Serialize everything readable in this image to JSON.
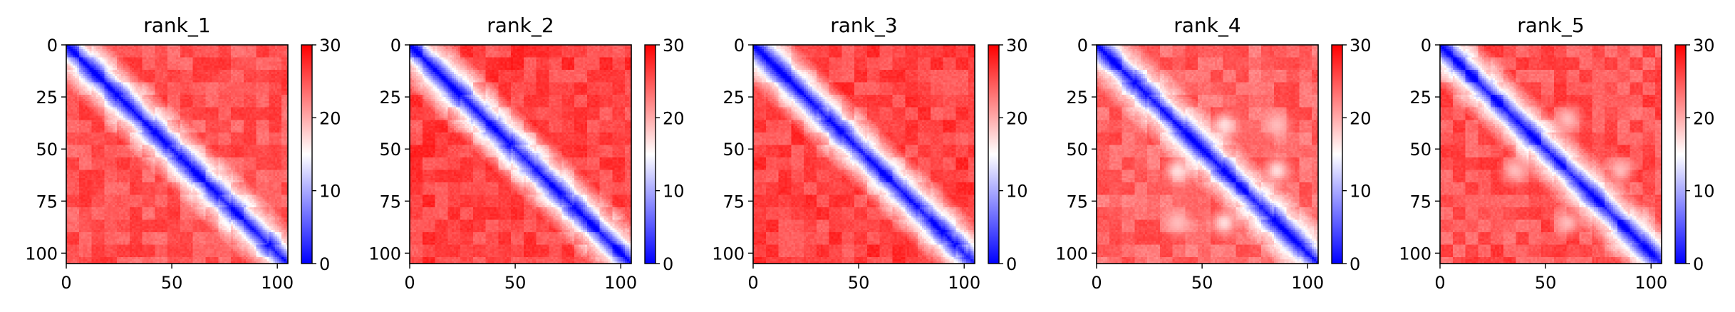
{
  "chart_data": [
    {
      "type": "heatmap",
      "title": "rank_1",
      "xlim": [
        0,
        105
      ],
      "ylim": [
        105,
        0
      ],
      "x_ticks": [
        0,
        50,
        100
      ],
      "y_ticks": [
        0,
        25,
        50,
        75,
        100
      ],
      "colorbar": {
        "min": 0,
        "max": 30,
        "ticks": [
          0,
          10,
          20,
          30
        ],
        "colormap": "bwr"
      },
      "diagonal_band_width": 9,
      "background_level": 25,
      "features": []
    },
    {
      "type": "heatmap",
      "title": "rank_2",
      "xlim": [
        0,
        105
      ],
      "ylim": [
        105,
        0
      ],
      "x_ticks": [
        0,
        50,
        100
      ],
      "y_ticks": [
        0,
        25,
        50,
        75,
        100
      ],
      "colorbar": {
        "min": 0,
        "max": 30,
        "ticks": [
          0,
          10,
          20,
          30
        ],
        "colormap": "bwr"
      },
      "diagonal_band_width": 9,
      "background_level": 26,
      "features": []
    },
    {
      "type": "heatmap",
      "title": "rank_3",
      "xlim": [
        0,
        105
      ],
      "ylim": [
        105,
        0
      ],
      "x_ticks": [
        0,
        50,
        100
      ],
      "y_ticks": [
        0,
        25,
        50,
        75,
        100
      ],
      "colorbar": {
        "min": 0,
        "max": 30,
        "ticks": [
          0,
          10,
          20,
          30
        ],
        "colormap": "bwr"
      },
      "diagonal_band_width": 9,
      "background_level": 26,
      "features": []
    },
    {
      "type": "heatmap",
      "title": "rank_4",
      "xlim": [
        0,
        105
      ],
      "ylim": [
        105,
        0
      ],
      "x_ticks": [
        0,
        50,
        100
      ],
      "y_ticks": [
        0,
        25,
        50,
        75,
        100
      ],
      "colorbar": {
        "min": 0,
        "max": 30,
        "ticks": [
          0,
          10,
          20,
          30
        ],
        "colormap": "bwr"
      },
      "diagonal_band_width": 9,
      "background_level": 24,
      "features": [
        {
          "x": 60,
          "y": 38,
          "value": 17
        },
        {
          "x": 38,
          "y": 60,
          "value": 17
        },
        {
          "x": 85,
          "y": 60,
          "value": 17
        },
        {
          "x": 60,
          "y": 85,
          "value": 17
        },
        {
          "x": 85,
          "y": 38,
          "value": 19
        },
        {
          "x": 38,
          "y": 85,
          "value": 19
        }
      ]
    },
    {
      "type": "heatmap",
      "title": "rank_5",
      "xlim": [
        0,
        105
      ],
      "ylim": [
        105,
        0
      ],
      "x_ticks": [
        0,
        50,
        100
      ],
      "y_ticks": [
        0,
        25,
        50,
        75,
        100
      ],
      "colorbar": {
        "min": 0,
        "max": 30,
        "ticks": [
          0,
          10,
          20,
          30
        ],
        "colormap": "bwr"
      },
      "diagonal_band_width": 9,
      "background_level": 25,
      "features": [
        {
          "x": 60,
          "y": 35,
          "value": 19
        },
        {
          "x": 35,
          "y": 60,
          "value": 19
        },
        {
          "x": 85,
          "y": 60,
          "value": 19
        },
        {
          "x": 60,
          "y": 85,
          "value": 19
        }
      ]
    }
  ]
}
